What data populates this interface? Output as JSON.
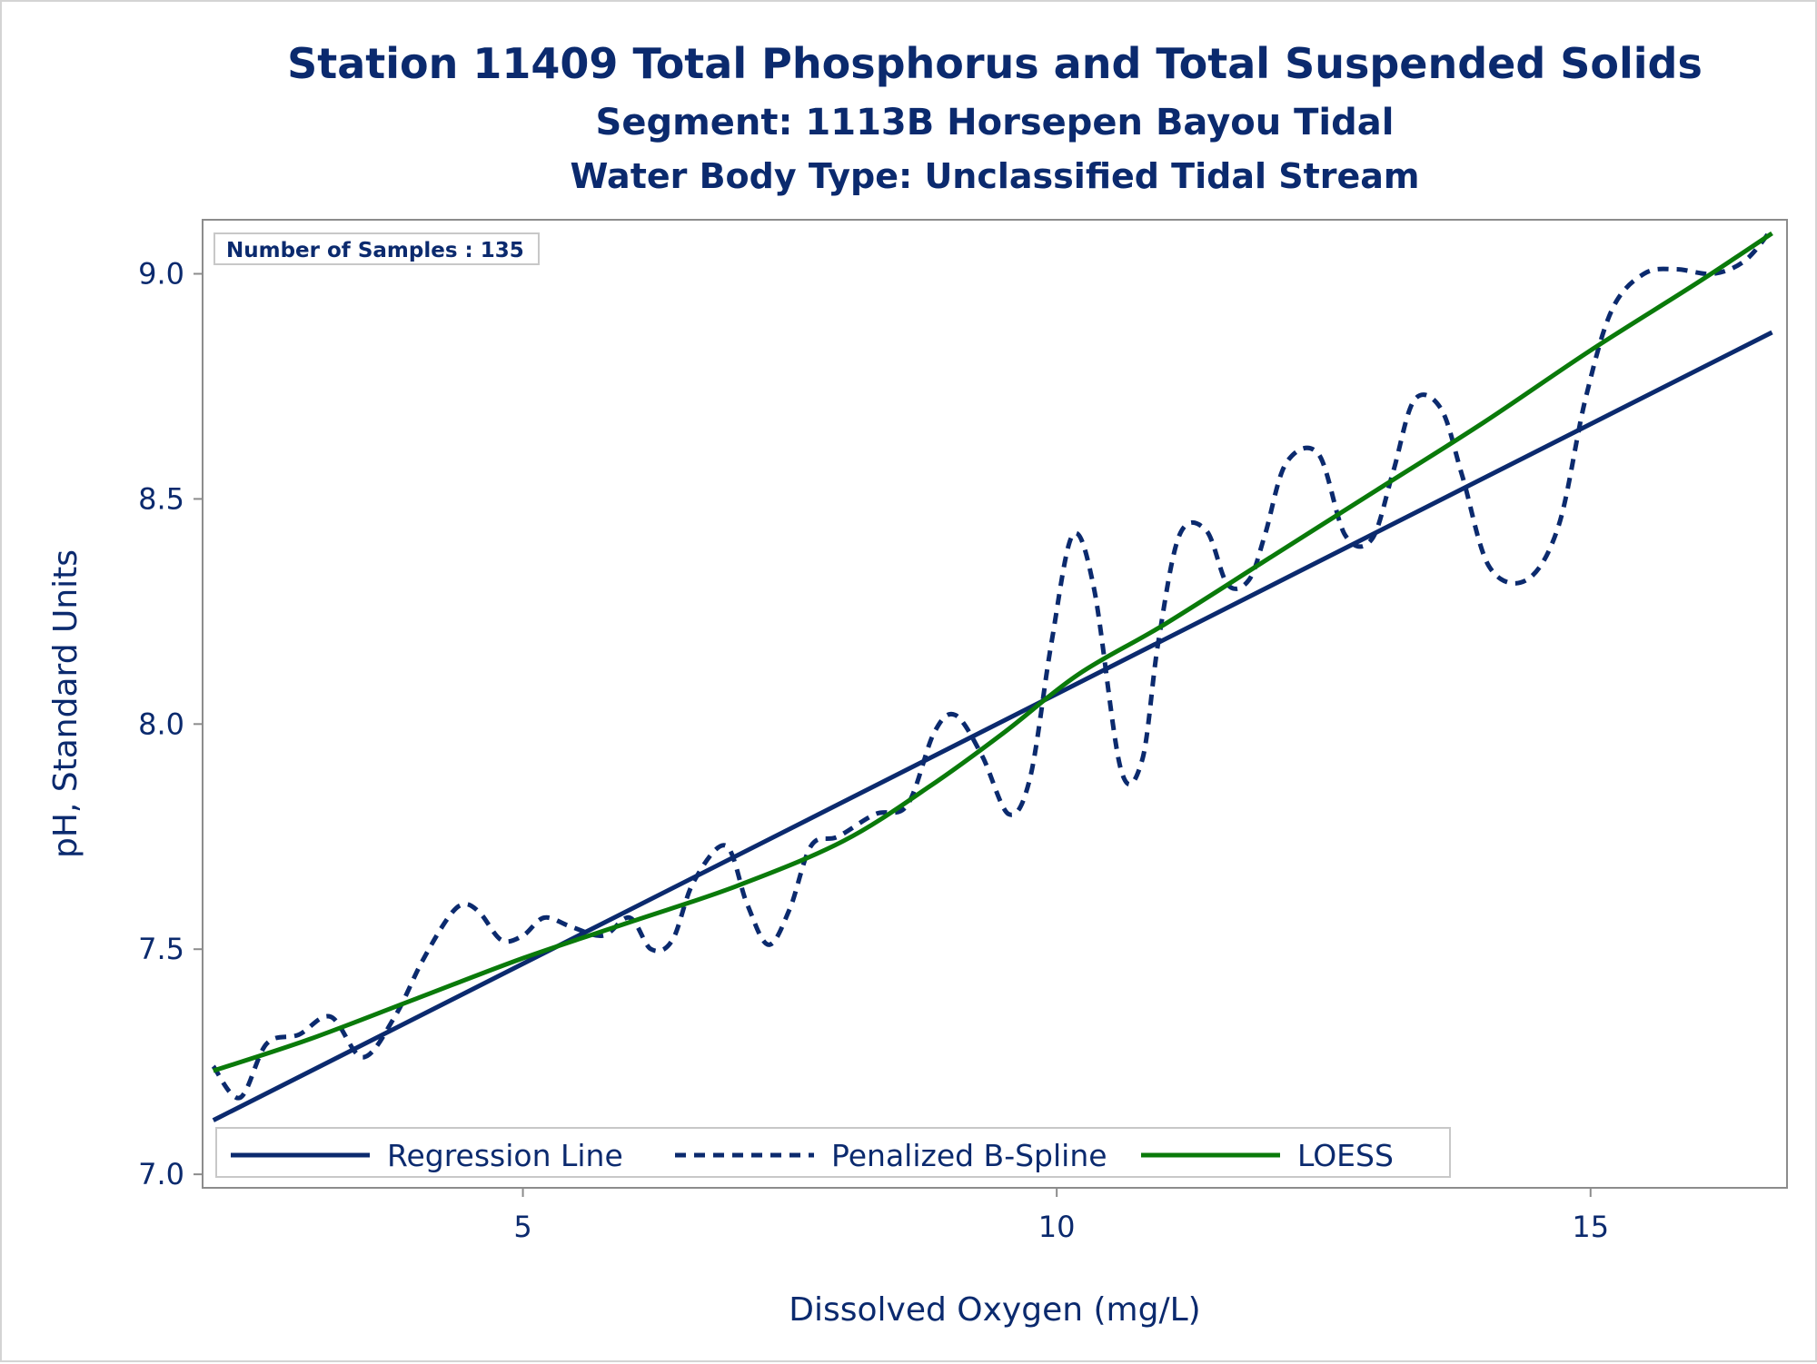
{
  "chart_data": {
    "type": "line",
    "title": "Station 11409  Total Phosphorus and Total Suspended Solids",
    "subtitle": "Segment: 1113B  Horsepen Bayou Tidal",
    "subtitle2": "Water Body Type: Unclassified Tidal Stream",
    "xlabel": "Dissolved Oxygen (mg/L)",
    "ylabel": "pH, Standard Units",
    "xlim": [
      2.0,
      16.84
    ],
    "ylim": [
      6.97,
      9.12
    ],
    "x_ticks": [
      5,
      10,
      15
    ],
    "x_tick_labels": [
      "5",
      "10",
      "15"
    ],
    "y_ticks": [
      7.0,
      7.5,
      8.0,
      8.5,
      9.0
    ],
    "y_tick_labels": [
      "7.0",
      "7.5",
      "8.0",
      "8.5",
      "9.0"
    ],
    "inset_text": "Number of Samples : 135",
    "legend_position": "bottom-left",
    "grid": false,
    "series": [
      {
        "name": "Regression Line",
        "style": "solid",
        "color": "#0b2a6e",
        "x": [
          2.1,
          16.7
        ],
        "y": [
          7.12,
          8.87
        ]
      },
      {
        "name": "Penalized B-Spline",
        "style": "dashed",
        "color": "#0b2a6e",
        "x": [
          2.1,
          2.35,
          2.6,
          2.9,
          3.2,
          3.5,
          3.8,
          4.05,
          4.3,
          4.45,
          4.6,
          4.8,
          5.0,
          5.2,
          5.45,
          5.75,
          6.0,
          6.2,
          6.4,
          6.6,
          6.9,
          7.1,
          7.3,
          7.5,
          7.7,
          7.95,
          8.3,
          8.6,
          8.85,
          9.05,
          9.3,
          9.55,
          9.75,
          9.95,
          10.15,
          10.35,
          10.6,
          10.8,
          10.95,
          11.15,
          11.4,
          11.6,
          11.8,
          11.95,
          12.15,
          12.45,
          12.7,
          12.95,
          13.15,
          13.35,
          13.6,
          13.8,
          14.05,
          14.4,
          14.7,
          14.95,
          15.2,
          15.5,
          15.8,
          16.15,
          16.45,
          16.7
        ],
        "y": [
          7.24,
          7.17,
          7.29,
          7.31,
          7.35,
          7.26,
          7.35,
          7.47,
          7.57,
          7.6,
          7.58,
          7.52,
          7.53,
          7.57,
          7.55,
          7.53,
          7.57,
          7.5,
          7.52,
          7.65,
          7.73,
          7.6,
          7.51,
          7.59,
          7.73,
          7.75,
          7.8,
          7.82,
          7.98,
          8.02,
          7.93,
          7.8,
          7.88,
          8.18,
          8.42,
          8.3,
          7.9,
          7.92,
          8.18,
          8.42,
          8.43,
          8.31,
          8.32,
          8.42,
          8.58,
          8.6,
          8.42,
          8.41,
          8.56,
          8.72,
          8.7,
          8.55,
          8.35,
          8.32,
          8.44,
          8.72,
          8.92,
          9.0,
          9.01,
          9.0,
          9.03,
          9.1
        ]
      },
      {
        "name": "LOESS",
        "style": "solid",
        "color": "#0a7a0a",
        "x": [
          2.1,
          3.0,
          4.0,
          5.0,
          6.0,
          7.0,
          8.0,
          8.8,
          9.5,
          10.2,
          11.0,
          12.0,
          13.0,
          14.0,
          15.0,
          16.0,
          16.7
        ],
        "y": [
          7.23,
          7.3,
          7.39,
          7.48,
          7.56,
          7.64,
          7.74,
          7.86,
          7.98,
          8.11,
          8.22,
          8.37,
          8.52,
          8.67,
          8.83,
          8.98,
          9.09
        ]
      }
    ]
  }
}
